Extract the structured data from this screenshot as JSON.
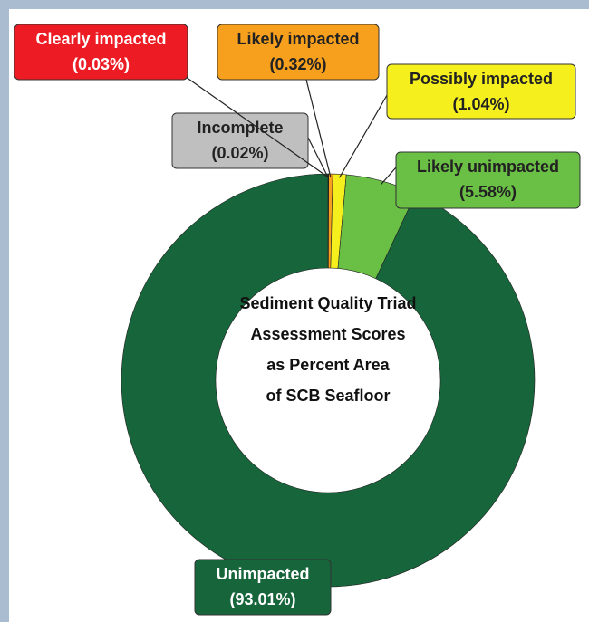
{
  "chart_data": {
    "type": "donut",
    "title": [
      "Sediment Quality Triad",
      "Assessment Scores",
      "as Percent Area",
      "of SCB Seafloor"
    ],
    "categories": [
      "Incomplete",
      "Clearly impacted",
      "Likely impacted",
      "Possibly impacted",
      "Likely unimpacted",
      "Unimpacted"
    ],
    "values": [
      0.02,
      0.03,
      0.32,
      1.04,
      5.58,
      93.01
    ],
    "value_labels": [
      "(0.02%)",
      "(0.03%)",
      "(0.32%)",
      "(1.04%)",
      "(5.58%)",
      "(93.01%)"
    ],
    "colors": [
      "#bfbfbf",
      "#ed1c24",
      "#f7a01d",
      "#f5ef1e",
      "#6abf45",
      "#17653a"
    ]
  }
}
